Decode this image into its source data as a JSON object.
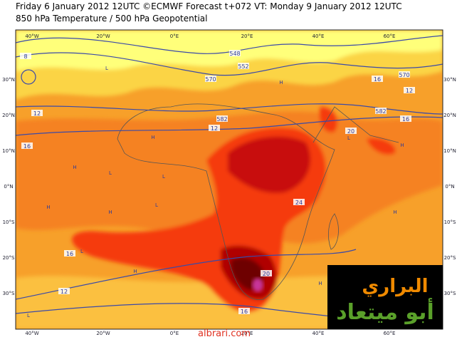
{
  "header": {
    "line1": "Friday 6 January 2012 12UTC ©ECMWF Forecast t+072 VT: Monday 9 January 2012 12UTC",
    "line2": "850 hPa Temperature / 500 hPa Geopotential"
  },
  "map": {
    "longitude_labels": [
      "40°W",
      "20°W",
      "0°E",
      "20°E",
      "40°E",
      "60°E"
    ],
    "latitude_labels": [
      "30°N",
      "20°N",
      "10°N",
      "0°N",
      "10°S",
      "20°S",
      "30°S"
    ],
    "contour_labels": [
      "548",
      "552",
      "570",
      "582",
      "570",
      "582",
      "8",
      "12",
      "16",
      "12",
      "16",
      "20",
      "16",
      "12",
      "16",
      "24",
      "20",
      "16",
      "12"
    ],
    "pressure_markers": [
      "L",
      "H",
      "L",
      "H",
      "H",
      "L",
      "H",
      "L",
      "H",
      "H",
      "L",
      "L",
      "H",
      "H",
      "L",
      "H"
    ]
  },
  "watermark": {
    "title": "البراري",
    "subtitle": "أبو ميتعاد",
    "site": "albrari.com"
  }
}
